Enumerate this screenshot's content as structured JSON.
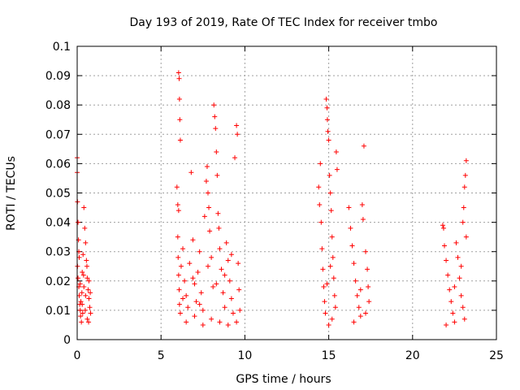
{
  "chart_data": {
    "type": "scatter",
    "title": "Day 193 of 2019, Rate Of TEC Index for receiver tmbo",
    "xlabel": "GPS time / hours",
    "ylabel": "ROTI / TECUs",
    "xlim": [
      0,
      25
    ],
    "ylim": [
      0,
      0.1
    ],
    "x_ticks": [
      "0",
      "5",
      "10",
      "15",
      "20",
      "25"
    ],
    "x_tick_values": [
      0,
      5,
      10,
      15,
      20,
      25
    ],
    "y_ticks": [
      "0",
      "0.01",
      "0.02",
      "0.03",
      "0.04",
      "0.05",
      "0.06",
      "0.07",
      "0.08",
      "0.09",
      "0.1"
    ],
    "y_tick_values": [
      0,
      0.01,
      0.02,
      0.03,
      0.04,
      0.05,
      0.06,
      0.07,
      0.08,
      0.09,
      0.1
    ],
    "grid": true,
    "marker": "+",
    "color": "#ff0000",
    "series": [
      {
        "values": [
          [
            0.0,
            0.062
          ],
          [
            0.0,
            0.057
          ],
          [
            0.02,
            0.047
          ],
          [
            0.05,
            0.04
          ],
          [
            0.08,
            0.034
          ],
          [
            0.1,
            0.03
          ],
          [
            0.02,
            0.025
          ],
          [
            0.05,
            0.021
          ],
          [
            0.1,
            0.018
          ],
          [
            0.12,
            0.015
          ],
          [
            0.15,
            0.012
          ],
          [
            0.18,
            0.01
          ],
          [
            0.2,
            0.008
          ],
          [
            0.25,
            0.006
          ],
          [
            0.3,
            0.023
          ],
          [
            0.35,
            0.029
          ],
          [
            0.4,
            0.045
          ],
          [
            0.45,
            0.038
          ],
          [
            0.5,
            0.033
          ],
          [
            0.55,
            0.027
          ],
          [
            0.6,
            0.021
          ],
          [
            0.65,
            0.017
          ],
          [
            0.7,
            0.014
          ],
          [
            0.75,
            0.011
          ],
          [
            0.8,
            0.009
          ],
          [
            0.3,
            0.012
          ],
          [
            0.4,
            0.018
          ],
          [
            0.5,
            0.015
          ],
          [
            0.6,
            0.007
          ],
          [
            0.7,
            0.02
          ],
          [
            0.22,
            0.013
          ],
          [
            0.28,
            0.016
          ],
          [
            0.33,
            0.009
          ],
          [
            0.38,
            0.022
          ],
          [
            0.48,
            0.01
          ],
          [
            0.58,
            0.025
          ],
          [
            0.68,
            0.006
          ],
          [
            0.78,
            0.016
          ],
          [
            0.12,
            0.028
          ],
          [
            0.18,
            0.019
          ],
          [
            5.95,
            0.052
          ],
          [
            6.0,
            0.046
          ],
          [
            6.05,
            0.044
          ],
          [
            6.05,
            0.091
          ],
          [
            6.08,
            0.089
          ],
          [
            6.1,
            0.082
          ],
          [
            6.12,
            0.075
          ],
          [
            6.15,
            0.068
          ],
          [
            6.0,
            0.035
          ],
          [
            6.02,
            0.028
          ],
          [
            6.05,
            0.022
          ],
          [
            6.08,
            0.017
          ],
          [
            6.1,
            0.012
          ],
          [
            6.15,
            0.009
          ],
          [
            6.2,
            0.025
          ],
          [
            6.3,
            0.031
          ],
          [
            6.4,
            0.02
          ],
          [
            6.5,
            0.015
          ],
          [
            6.6,
            0.011
          ],
          [
            6.7,
            0.026
          ],
          [
            6.8,
            0.057
          ],
          [
            6.9,
            0.034
          ],
          [
            7.0,
            0.019
          ],
          [
            7.1,
            0.013
          ],
          [
            7.2,
            0.023
          ],
          [
            7.3,
            0.03
          ],
          [
            7.4,
            0.016
          ],
          [
            7.5,
            0.01
          ],
          [
            7.6,
            0.042
          ],
          [
            7.7,
            0.054
          ],
          [
            7.75,
            0.059
          ],
          [
            7.8,
            0.05
          ],
          [
            7.85,
            0.045
          ],
          [
            7.9,
            0.037
          ],
          [
            8.0,
            0.028
          ],
          [
            8.1,
            0.018
          ],
          [
            8.15,
            0.08
          ],
          [
            8.2,
            0.076
          ],
          [
            8.25,
            0.072
          ],
          [
            8.3,
            0.064
          ],
          [
            8.35,
            0.056
          ],
          [
            8.4,
            0.043
          ],
          [
            8.45,
            0.038
          ],
          [
            8.5,
            0.031
          ],
          [
            8.6,
            0.024
          ],
          [
            8.7,
            0.016
          ],
          [
            8.8,
            0.011
          ],
          [
            8.9,
            0.033
          ],
          [
            9.0,
            0.027
          ],
          [
            9.1,
            0.02
          ],
          [
            9.2,
            0.014
          ],
          [
            9.3,
            0.009
          ],
          [
            9.4,
            0.062
          ],
          [
            9.5,
            0.073
          ],
          [
            9.55,
            0.07
          ],
          [
            9.6,
            0.026
          ],
          [
            9.65,
            0.017
          ],
          [
            9.7,
            0.01
          ],
          [
            6.5,
            0.006
          ],
          [
            7.0,
            0.008
          ],
          [
            7.5,
            0.005
          ],
          [
            8.0,
            0.007
          ],
          [
            8.5,
            0.006
          ],
          [
            9.0,
            0.005
          ],
          [
            9.5,
            0.006
          ],
          [
            6.3,
            0.014
          ],
          [
            6.9,
            0.021
          ],
          [
            7.3,
            0.012
          ],
          [
            7.8,
            0.025
          ],
          [
            8.3,
            0.019
          ],
          [
            8.8,
            0.022
          ],
          [
            9.2,
            0.029
          ],
          [
            14.4,
            0.052
          ],
          [
            14.45,
            0.046
          ],
          [
            14.5,
            0.06
          ],
          [
            14.55,
            0.04
          ],
          [
            14.6,
            0.031
          ],
          [
            14.65,
            0.024
          ],
          [
            14.7,
            0.018
          ],
          [
            14.75,
            0.013
          ],
          [
            14.8,
            0.009
          ],
          [
            14.85,
            0.082
          ],
          [
            14.9,
            0.079
          ],
          [
            14.92,
            0.075
          ],
          [
            14.95,
            0.071
          ],
          [
            15.0,
            0.068
          ],
          [
            15.05,
            0.056
          ],
          [
            15.1,
            0.05
          ],
          [
            15.15,
            0.044
          ],
          [
            15.2,
            0.035
          ],
          [
            15.25,
            0.028
          ],
          [
            15.3,
            0.021
          ],
          [
            15.35,
            0.015
          ],
          [
            15.4,
            0.011
          ],
          [
            15.45,
            0.064
          ],
          [
            15.5,
            0.058
          ],
          [
            15.2,
            0.007
          ],
          [
            15.0,
            0.005
          ],
          [
            14.9,
            0.019
          ],
          [
            15.1,
            0.025
          ],
          [
            16.2,
            0.045
          ],
          [
            16.3,
            0.038
          ],
          [
            16.4,
            0.032
          ],
          [
            16.5,
            0.026
          ],
          [
            16.6,
            0.02
          ],
          [
            16.7,
            0.015
          ],
          [
            16.8,
            0.011
          ],
          [
            16.9,
            0.008
          ],
          [
            17.0,
            0.046
          ],
          [
            17.05,
            0.041
          ],
          [
            17.1,
            0.066
          ],
          [
            17.2,
            0.03
          ],
          [
            17.3,
            0.024
          ],
          [
            17.35,
            0.018
          ],
          [
            17.4,
            0.013
          ],
          [
            16.5,
            0.006
          ],
          [
            16.9,
            0.017
          ],
          [
            17.2,
            0.009
          ],
          [
            21.8,
            0.039
          ],
          [
            21.85,
            0.038
          ],
          [
            21.9,
            0.032
          ],
          [
            22.0,
            0.027
          ],
          [
            22.1,
            0.022
          ],
          [
            22.2,
            0.017
          ],
          [
            22.3,
            0.013
          ],
          [
            22.4,
            0.009
          ],
          [
            22.5,
            0.006
          ],
          [
            22.6,
            0.033
          ],
          [
            22.7,
            0.028
          ],
          [
            22.8,
            0.021
          ],
          [
            22.9,
            0.015
          ],
          [
            23.0,
            0.04
          ],
          [
            23.05,
            0.045
          ],
          [
            23.1,
            0.052
          ],
          [
            23.15,
            0.056
          ],
          [
            23.2,
            0.061
          ],
          [
            23.0,
            0.011
          ],
          [
            23.1,
            0.007
          ],
          [
            22.0,
            0.005
          ],
          [
            22.5,
            0.018
          ],
          [
            22.9,
            0.025
          ],
          [
            23.2,
            0.035
          ]
        ]
      }
    ]
  }
}
